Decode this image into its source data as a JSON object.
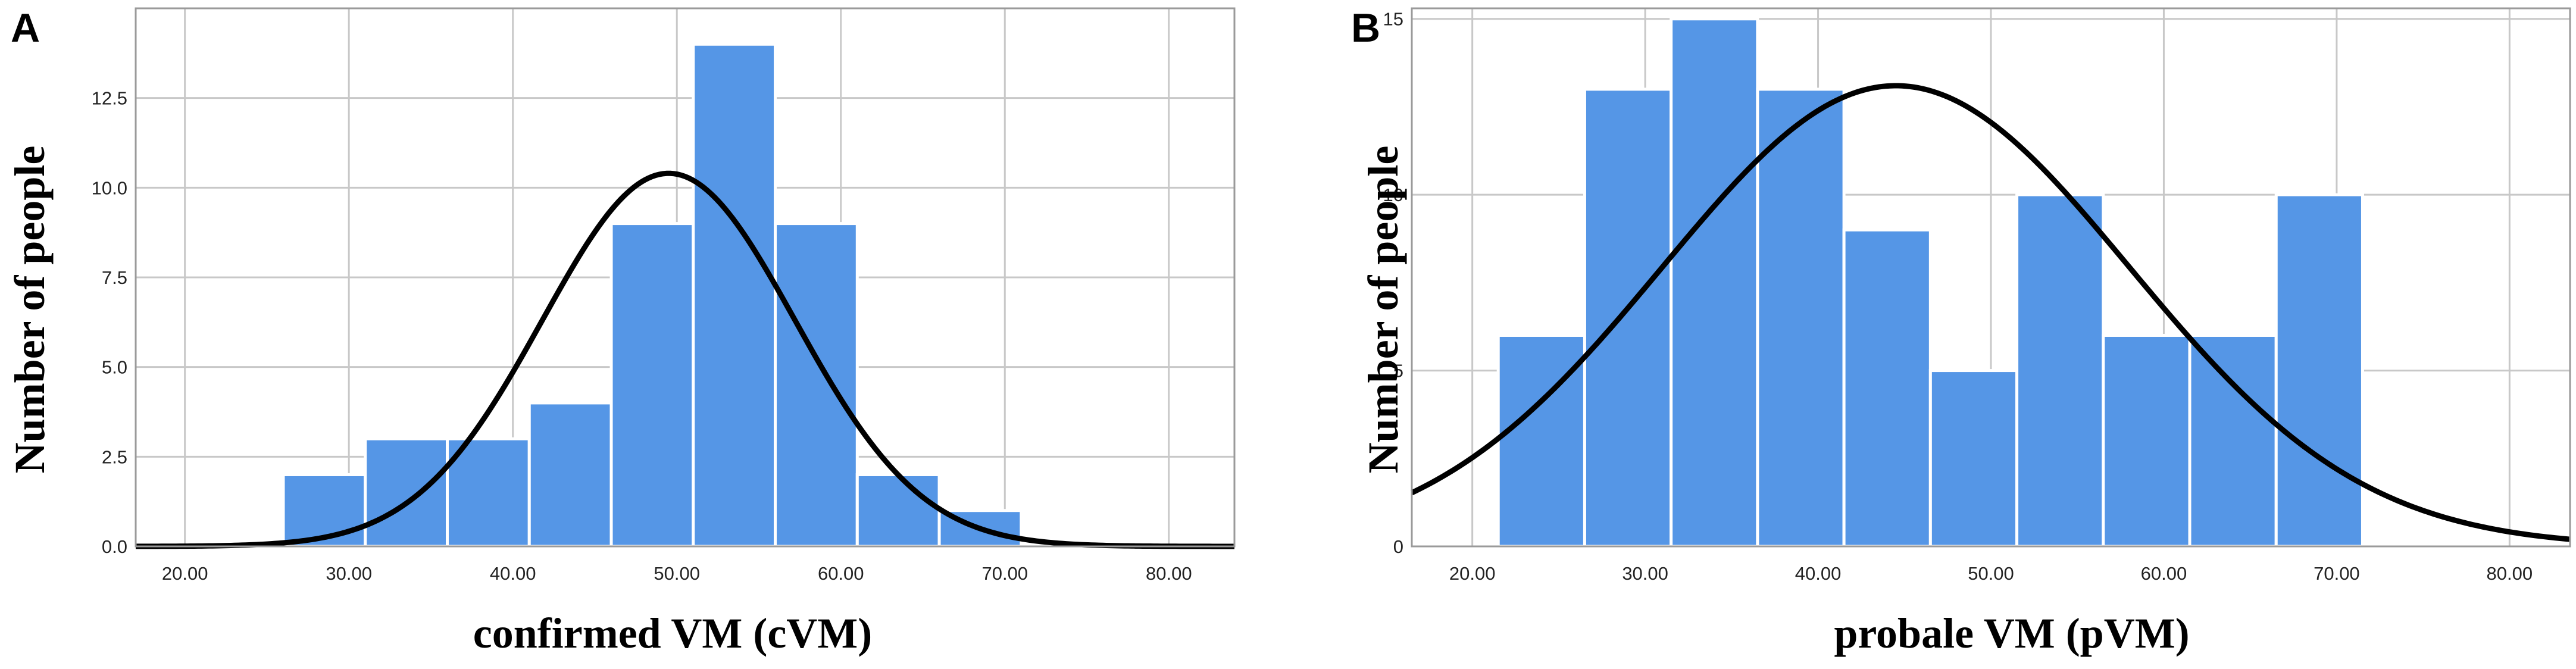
{
  "figure": {
    "bar_color": "#5596e6",
    "curve_color": "#000000",
    "grid_color": "#c8c8c8"
  },
  "chart_data": [
    {
      "type": "bar",
      "panel": "A",
      "xlabel": "confirmed VM (cVM)",
      "ylabel": "Number of people",
      "xlim": [
        17,
        84
      ],
      "ylim": [
        0,
        15
      ],
      "xticks": [
        20,
        30,
        40,
        50,
        60,
        70,
        80
      ],
      "xtick_labels": [
        "20.00",
        "30.00",
        "40.00",
        "50.00",
        "60.00",
        "70.00",
        "80.00"
      ],
      "yticks": [
        0,
        2.5,
        5,
        7.5,
        10,
        12.5
      ],
      "ytick_labels": [
        "0.0",
        "2.5",
        "5.0",
        "7.5",
        "10.0",
        "12.5"
      ],
      "grid": true,
      "bins": [
        {
          "start": 26,
          "end": 31,
          "count": 2
        },
        {
          "start": 31,
          "end": 36,
          "count": 3
        },
        {
          "start": 36,
          "end": 41,
          "count": 3
        },
        {
          "start": 41,
          "end": 46,
          "count": 4
        },
        {
          "start": 46,
          "end": 51,
          "count": 9
        },
        {
          "start": 51,
          "end": 56,
          "count": 14
        },
        {
          "start": 56,
          "end": 61,
          "count": 9
        },
        {
          "start": 61,
          "end": 66,
          "count": 2
        },
        {
          "start": 66,
          "end": 71,
          "count": 1
        }
      ],
      "normal_curve": {
        "mean": 49.5,
        "peak": 10.4,
        "sd": 7.7
      }
    },
    {
      "type": "bar",
      "panel": "B",
      "xlabel": "probale VM (pVM)",
      "ylabel": "Number of people",
      "xlim": [
        16.5,
        83.5
      ],
      "ylim": [
        0,
        15.3
      ],
      "xticks": [
        20,
        30,
        40,
        50,
        60,
        70,
        80
      ],
      "xtick_labels": [
        "20.00",
        "30.00",
        "40.00",
        "50.00",
        "60.00",
        "70.00",
        "80.00"
      ],
      "yticks": [
        0,
        5,
        10,
        15
      ],
      "ytick_labels": [
        "0",
        "5",
        "10",
        "15"
      ],
      "grid": true,
      "bins": [
        {
          "start": 21.5,
          "end": 26.5,
          "count": 6
        },
        {
          "start": 26.5,
          "end": 31.5,
          "count": 13
        },
        {
          "start": 31.5,
          "end": 36.5,
          "count": 15
        },
        {
          "start": 36.5,
          "end": 41.5,
          "count": 13
        },
        {
          "start": 41.5,
          "end": 46.5,
          "count": 9
        },
        {
          "start": 46.5,
          "end": 51.5,
          "count": 5
        },
        {
          "start": 51.5,
          "end": 56.5,
          "count": 10
        },
        {
          "start": 56.5,
          "end": 61.5,
          "count": 6
        },
        {
          "start": 61.5,
          "end": 66.5,
          "count": 6
        },
        {
          "start": 66.5,
          "end": 71.5,
          "count": 10
        }
      ],
      "normal_curve": {
        "mean": 44.5,
        "peak": 13.1,
        "sd": 13.5
      }
    }
  ]
}
